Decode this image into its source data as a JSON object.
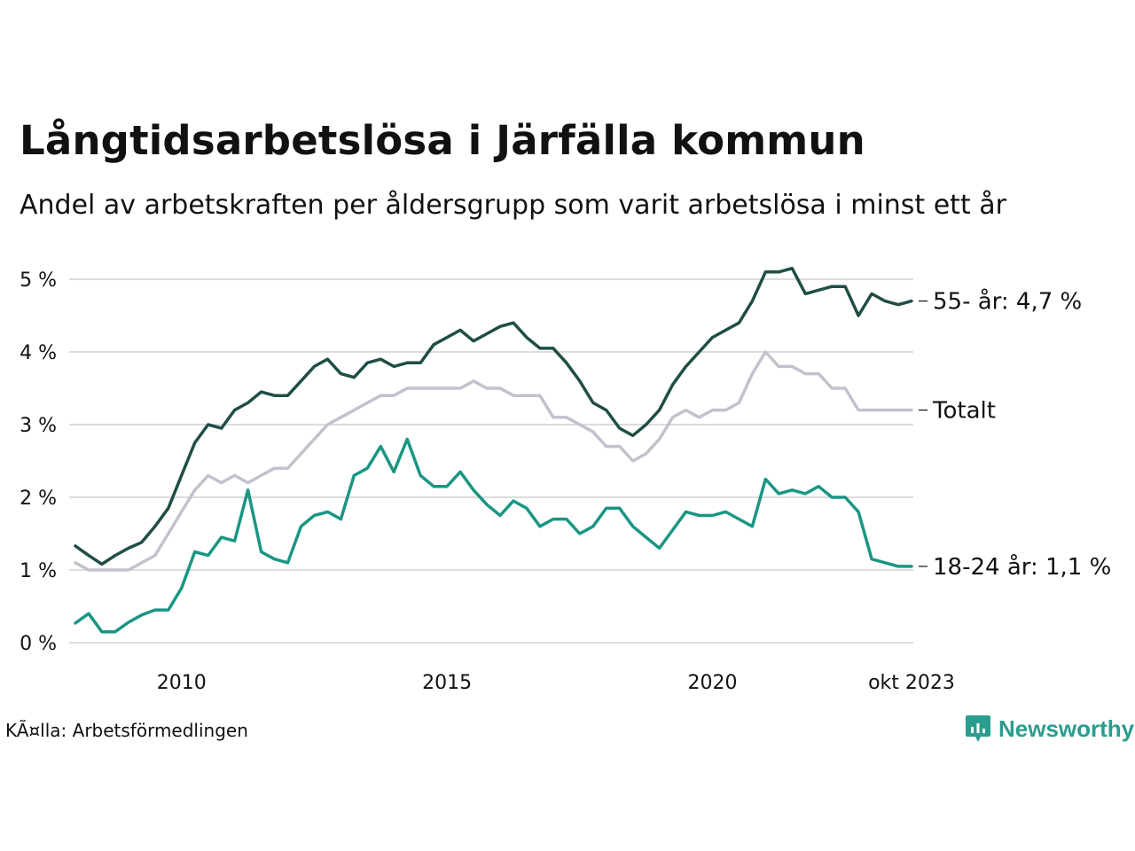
{
  "header": {
    "title": "Långtidsarbetslösa i Järfälla kommun",
    "subtitle": "Andel av arbetskraften per åldersgrupp som varit arbetslösa i minst ett år"
  },
  "footer": {
    "source": "KÃ¤lla: Arbetsförmedlingen",
    "brand": "Newsworthy",
    "brand_icon": "newsworthy-logo-icon"
  },
  "chart_data": {
    "type": "line",
    "title": "Långtidsarbetslösa i Järfälla kommun",
    "subtitle": "Andel av arbetskraften per åldersgrupp som varit arbetslösa i minst ett år",
    "xlabel": "",
    "ylabel": "",
    "y_unit": "%",
    "ylim": [
      0,
      5.3
    ],
    "y_ticks": [
      0,
      1,
      2,
      3,
      4,
      5
    ],
    "y_tick_labels": [
      "0 %",
      "1 %",
      "2 %",
      "3 %",
      "4 %",
      "5 %"
    ],
    "x_range": [
      2008.0,
      2023.75
    ],
    "x_ticks": [
      2010,
      2015,
      2020,
      2023.75
    ],
    "x_tick_labels": [
      "2010",
      "2015",
      "2020",
      "okt 2023"
    ],
    "grid": true,
    "series": [
      {
        "name": "55- år",
        "end_label": "55- år: 4,7 %",
        "color": "#1f4e45",
        "x": [
          2008.0,
          2008.25,
          2008.5,
          2008.75,
          2009.0,
          2009.25,
          2009.5,
          2009.75,
          2010.0,
          2010.25,
          2010.5,
          2010.75,
          2011.0,
          2011.25,
          2011.5,
          2011.75,
          2012.0,
          2012.25,
          2012.5,
          2012.75,
          2013.0,
          2013.25,
          2013.5,
          2013.75,
          2014.0,
          2014.25,
          2014.5,
          2014.75,
          2015.0,
          2015.25,
          2015.5,
          2015.75,
          2016.0,
          2016.25,
          2016.5,
          2016.75,
          2017.0,
          2017.25,
          2017.5,
          2017.75,
          2018.0,
          2018.25,
          2018.5,
          2018.75,
          2019.0,
          2019.25,
          2019.5,
          2019.75,
          2020.0,
          2020.25,
          2020.5,
          2020.75,
          2021.0,
          2021.25,
          2021.5,
          2021.75,
          2022.0,
          2022.25,
          2022.5,
          2022.75,
          2023.0,
          2023.25,
          2023.5,
          2023.75
        ],
        "values": [
          1.33,
          1.2,
          1.08,
          1.2,
          1.3,
          1.38,
          1.6,
          1.85,
          2.3,
          2.75,
          3.0,
          2.95,
          3.2,
          3.3,
          3.45,
          3.4,
          3.4,
          3.6,
          3.8,
          3.9,
          3.7,
          3.65,
          3.85,
          3.9,
          3.8,
          3.85,
          3.85,
          4.1,
          4.2,
          4.3,
          4.15,
          4.25,
          4.35,
          4.4,
          4.2,
          4.05,
          4.05,
          3.85,
          3.6,
          3.3,
          3.2,
          2.95,
          2.85,
          3.0,
          3.2,
          3.55,
          3.8,
          4.0,
          4.2,
          4.3,
          4.4,
          4.7,
          5.1,
          5.1,
          5.15,
          4.8,
          4.85,
          4.9,
          4.9,
          4.5,
          4.8,
          4.7,
          4.65,
          4.7
        ]
      },
      {
        "name": "Totalt",
        "end_label": "Totalt",
        "color": "#c4c1cc",
        "x": [
          2008.0,
          2008.25,
          2008.5,
          2008.75,
          2009.0,
          2009.25,
          2009.5,
          2009.75,
          2010.0,
          2010.25,
          2010.5,
          2010.75,
          2011.0,
          2011.25,
          2011.5,
          2011.75,
          2012.0,
          2012.25,
          2012.5,
          2012.75,
          2013.0,
          2013.25,
          2013.5,
          2013.75,
          2014.0,
          2014.25,
          2014.5,
          2014.75,
          2015.0,
          2015.25,
          2015.5,
          2015.75,
          2016.0,
          2016.25,
          2016.5,
          2016.75,
          2017.0,
          2017.25,
          2017.5,
          2017.75,
          2018.0,
          2018.25,
          2018.5,
          2018.75,
          2019.0,
          2019.25,
          2019.5,
          2019.75,
          2020.0,
          2020.25,
          2020.5,
          2020.75,
          2021.0,
          2021.25,
          2021.5,
          2021.75,
          2022.0,
          2022.25,
          2022.5,
          2022.75,
          2023.0,
          2023.25,
          2023.5,
          2023.75
        ],
        "values": [
          1.1,
          1.0,
          1.0,
          1.0,
          1.0,
          1.1,
          1.2,
          1.5,
          1.8,
          2.1,
          2.3,
          2.2,
          2.3,
          2.2,
          2.3,
          2.4,
          2.4,
          2.6,
          2.8,
          3.0,
          3.1,
          3.2,
          3.3,
          3.4,
          3.4,
          3.5,
          3.5,
          3.5,
          3.5,
          3.5,
          3.6,
          3.5,
          3.5,
          3.4,
          3.4,
          3.4,
          3.1,
          3.1,
          3.0,
          2.9,
          2.7,
          2.7,
          2.5,
          2.6,
          2.8,
          3.1,
          3.2,
          3.1,
          3.2,
          3.2,
          3.3,
          3.7,
          4.0,
          3.8,
          3.8,
          3.7,
          3.7,
          3.5,
          3.5,
          3.2,
          3.2,
          3.2,
          3.2,
          3.2
        ]
      },
      {
        "name": "18-24 år",
        "end_label": "18-24 år: 1,1 %",
        "color": "#1a9683",
        "x": [
          2008.0,
          2008.25,
          2008.5,
          2008.75,
          2009.0,
          2009.25,
          2009.5,
          2009.75,
          2010.0,
          2010.25,
          2010.5,
          2010.75,
          2011.0,
          2011.25,
          2011.5,
          2011.75,
          2012.0,
          2012.25,
          2012.5,
          2012.75,
          2013.0,
          2013.25,
          2013.5,
          2013.75,
          2014.0,
          2014.25,
          2014.5,
          2014.75,
          2015.0,
          2015.25,
          2015.5,
          2015.75,
          2016.0,
          2016.25,
          2016.5,
          2016.75,
          2017.0,
          2017.25,
          2017.5,
          2017.75,
          2018.0,
          2018.25,
          2018.5,
          2018.75,
          2019.0,
          2019.25,
          2019.5,
          2019.75,
          2020.0,
          2020.25,
          2020.5,
          2020.75,
          2021.0,
          2021.25,
          2021.5,
          2021.75,
          2022.0,
          2022.25,
          2022.5,
          2022.75,
          2023.0,
          2023.25,
          2023.5,
          2023.75
        ],
        "values": [
          0.27,
          0.4,
          0.15,
          0.15,
          0.28,
          0.38,
          0.45,
          0.45,
          0.75,
          1.25,
          1.2,
          1.45,
          1.4,
          2.1,
          1.25,
          1.15,
          1.1,
          1.6,
          1.75,
          1.8,
          1.7,
          2.3,
          2.4,
          2.7,
          2.35,
          2.8,
          2.3,
          2.15,
          2.15,
          2.35,
          2.1,
          1.9,
          1.75,
          1.95,
          1.85,
          1.6,
          1.7,
          1.7,
          1.5,
          1.6,
          1.85,
          1.85,
          1.6,
          1.45,
          1.3,
          1.55,
          1.8,
          1.75,
          1.75,
          1.8,
          1.7,
          1.6,
          2.25,
          2.05,
          2.1,
          2.05,
          2.15,
          2.0,
          2.0,
          1.8,
          1.15,
          1.1,
          1.05,
          1.05
        ]
      }
    ]
  }
}
